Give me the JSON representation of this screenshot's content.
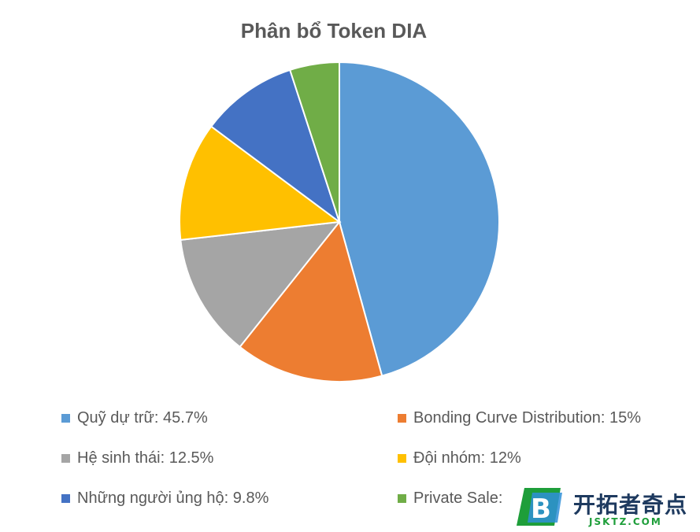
{
  "chart_data": {
    "type": "pie",
    "title": "Phân bổ Token DIA",
    "legend_position": "bottom",
    "slices": [
      {
        "label": "Quỹ dự trữ",
        "value": 45.7,
        "legend": "Quỹ dự trữ: 45.7%",
        "color": "#5B9BD5"
      },
      {
        "label": "Bonding Curve Distribution",
        "value": 15,
        "legend": "Bonding Curve Distribution: 15%",
        "color": "#ED7D31"
      },
      {
        "label": "Hệ sinh thái",
        "value": 12.5,
        "legend": "Hệ sinh thái: 12.5%",
        "color": "#A5A5A5"
      },
      {
        "label": "Đội nhóm",
        "value": 12,
        "legend": "Đội nhóm: 12%",
        "color": "#FFC000"
      },
      {
        "label": "Những người ủng hộ",
        "value": 9.8,
        "legend": "Những người ủng hộ: 9.8%",
        "color": "#4472C4"
      },
      {
        "label": "Private Sale",
        "value": 5,
        "legend": "Private Sale:",
        "color": "#70AD47"
      }
    ]
  },
  "watermark": {
    "badge_letter": "B",
    "text_cn": "开拓者奇点",
    "text_en": "JSKTZ.COM"
  }
}
